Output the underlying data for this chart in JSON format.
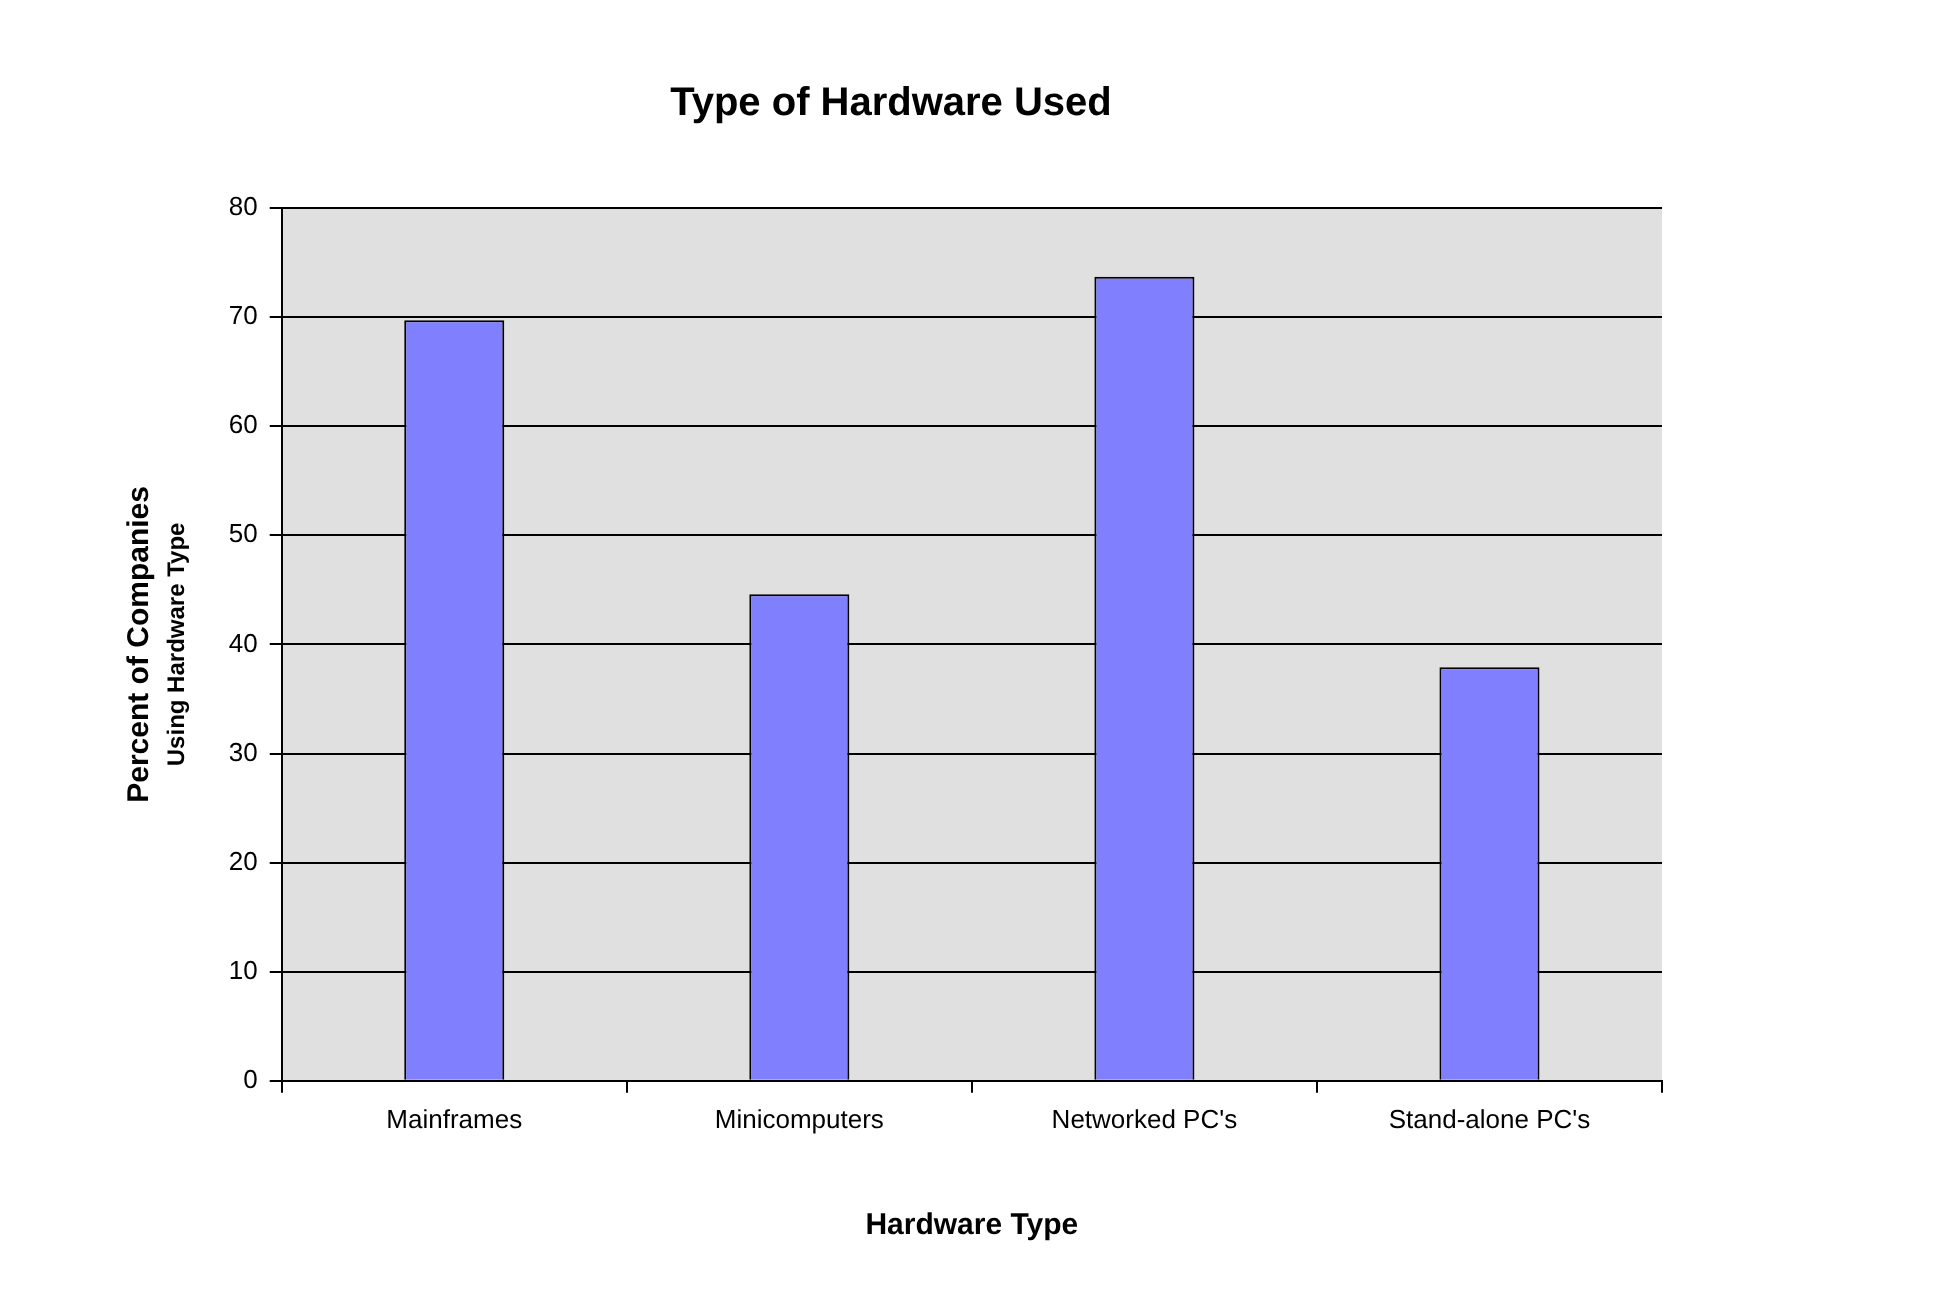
{
  "chart_data": {
    "type": "bar",
    "title": "Type of Hardware Used",
    "xlabel": "Hardware Type",
    "ylabel": "Percent of Companies\nUsing Hardware Type",
    "categories": [
      "Mainframes",
      "Minicomputers",
      "Networked PC's",
      "Stand-alone PC's"
    ],
    "values": [
      69.7,
      44.6,
      73.7,
      37.9
    ],
    "color": "#8080ff",
    "ylim": [
      0,
      80
    ],
    "yticks": [
      0,
      10,
      20,
      30,
      40,
      50,
      60,
      70,
      80
    ],
    "grid": "y",
    "legend": false
  }
}
